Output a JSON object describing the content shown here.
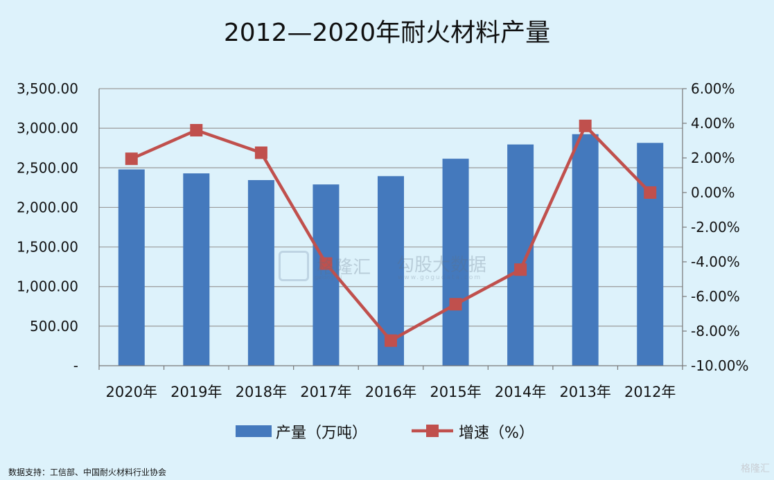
{
  "chart_data": {
    "type": "bar",
    "title": "2012—2020年耐火材料产量",
    "categories": [
      "2020年",
      "2019年",
      "2018年",
      "2017年",
      "2016年",
      "2015年",
      "2014年",
      "2013年",
      "2012年"
    ],
    "series": [
      {
        "name": "产量（万吨）",
        "type": "bar",
        "axis": "left",
        "color": "#4479bd",
        "values": [
          2480,
          2430,
          2345,
          2290,
          2395,
          2615,
          2795,
          2925,
          2815
        ]
      },
      {
        "name": "增速（%）",
        "type": "line",
        "axis": "right",
        "color": "#c0504d",
        "values": [
          1.95,
          3.6,
          2.3,
          -4.1,
          -8.55,
          -6.45,
          -4.45,
          3.85,
          0.0
        ]
      }
    ],
    "y_left": {
      "min": 0,
      "max": 3500,
      "ticks": [
        "-",
        "500.00",
        "1,000.00",
        "1,500.00",
        "2,000.00",
        "2,500.00",
        "3,000.00",
        "3,500.00"
      ]
    },
    "y_right": {
      "min": -10,
      "max": 6,
      "ticks": [
        "-10.00%",
        "-8.00%",
        "-6.00%",
        "-4.00%",
        "-2.00%",
        "0.00%",
        "2.00%",
        "4.00%",
        "6.00%"
      ]
    },
    "grid": true,
    "legend_position": "bottom"
  },
  "source_text": "数据支持：工信部、中国耐火材料行业协会",
  "watermark": {
    "brand": "格隆汇",
    "brand_sub": "gelonghui",
    "site": "勾股大数据",
    "site_url": "www.gogudata.com"
  },
  "corner_logo": "格隆汇"
}
